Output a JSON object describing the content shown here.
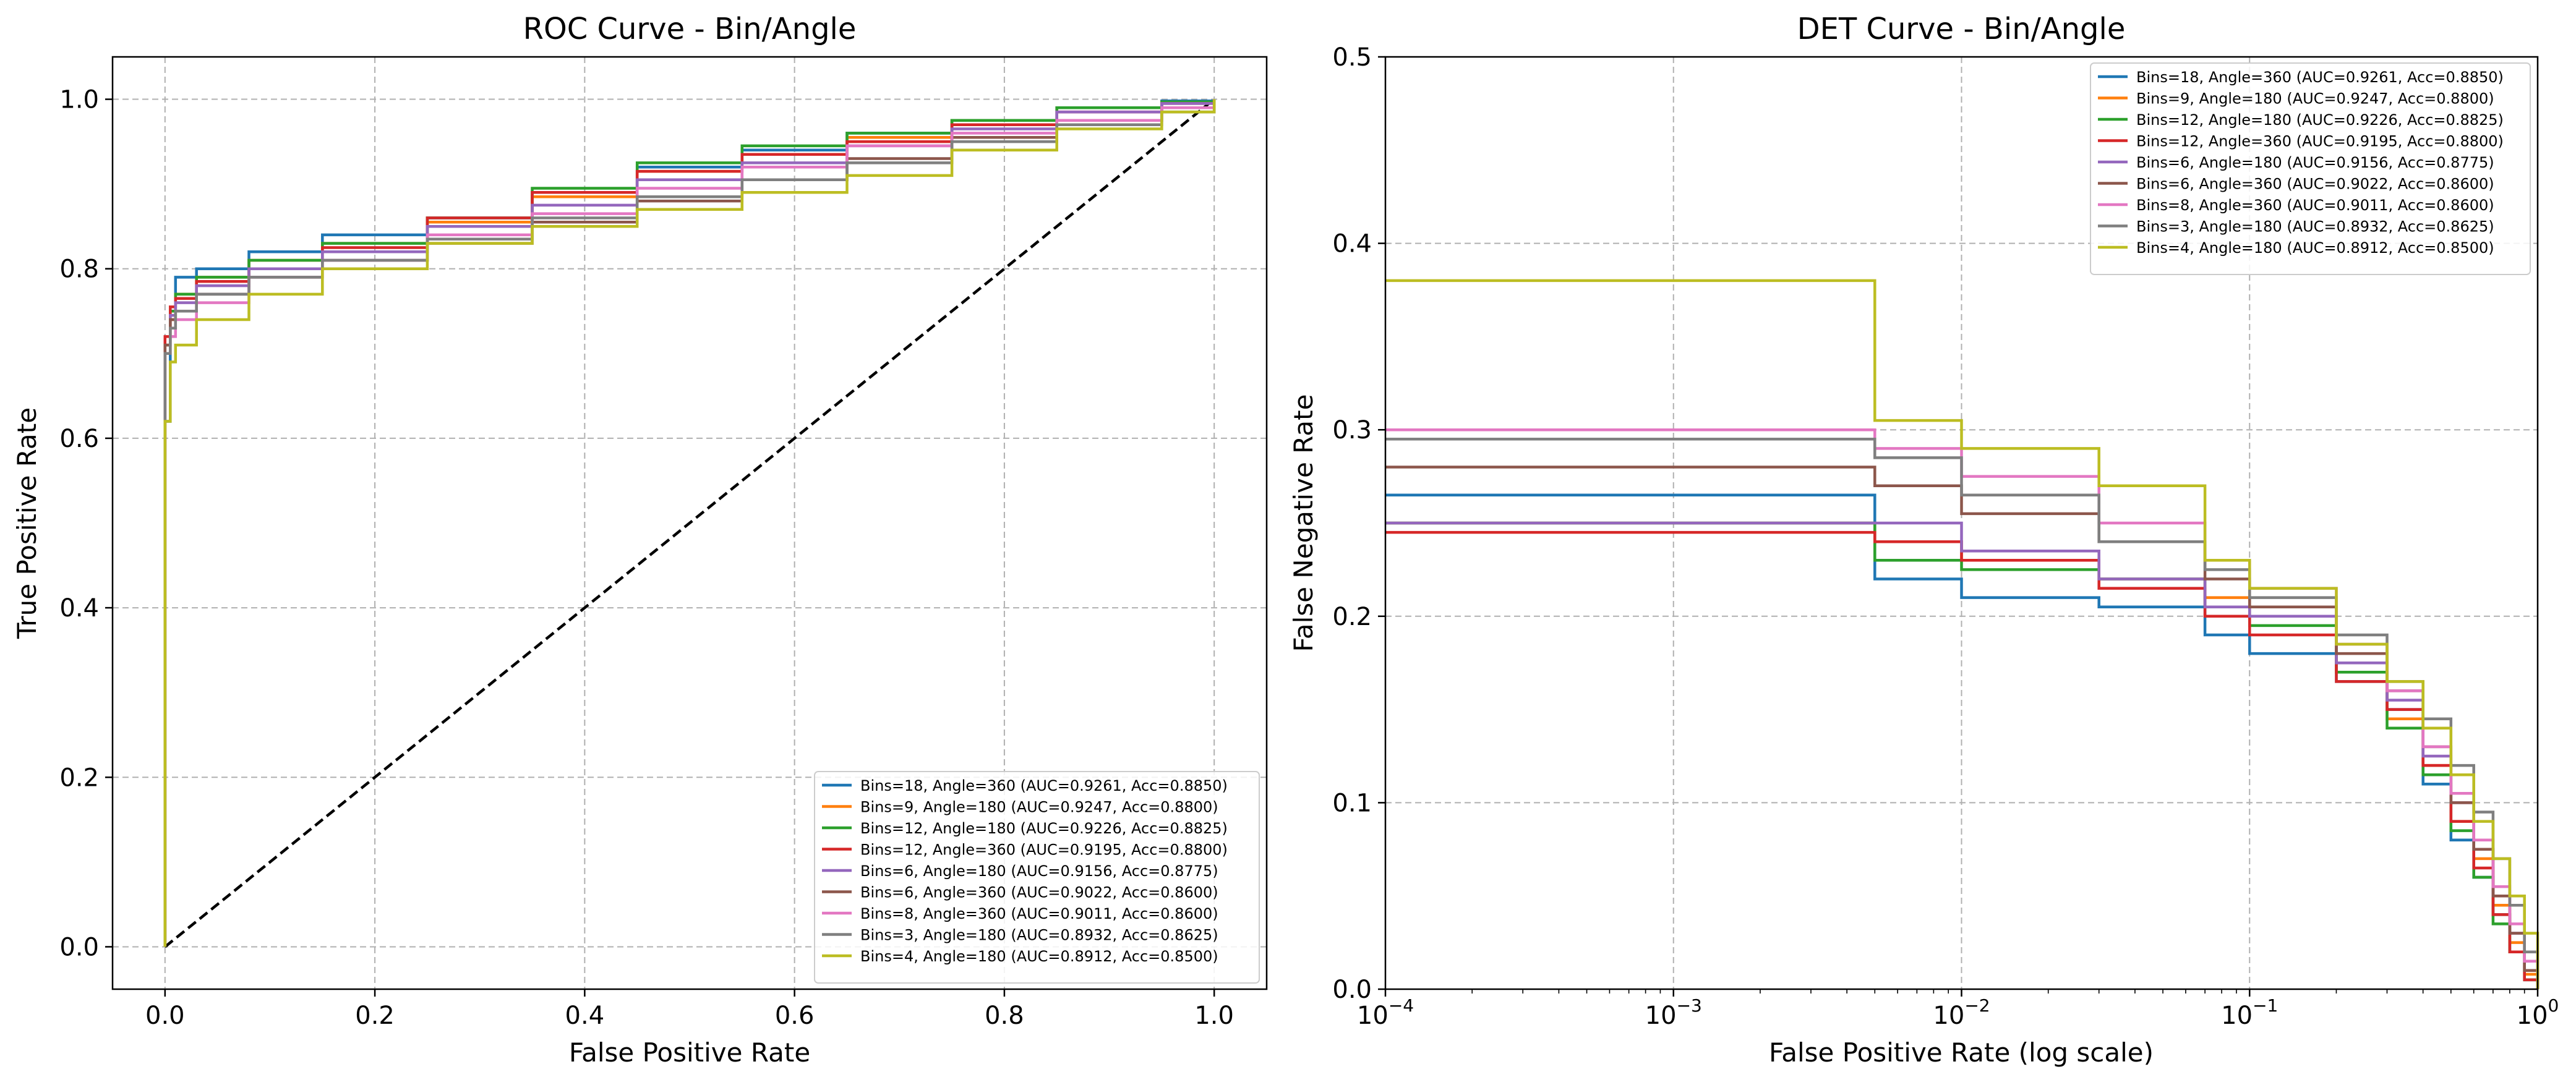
{
  "colors": {
    "tab_blue": "#1f77b4",
    "tab_orange": "#ff7f0e",
    "tab_green": "#2ca02c",
    "tab_red": "#d62728",
    "tab_purple": "#9467bd",
    "tab_brown": "#8c564b",
    "tab_pink": "#e377c2",
    "tab_gray": "#7f7f7f",
    "tab_olive": "#bcbd22",
    "grid": "#b0b0b0",
    "diagonal": "#000000"
  },
  "series_labels": [
    "Bins=18, Angle=360 (AUC=0.9261, Acc=0.8850)",
    "Bins=9, Angle=180 (AUC=0.9247, Acc=0.8800)",
    "Bins=12, Angle=180 (AUC=0.9226, Acc=0.8825)",
    "Bins=12, Angle=360 (AUC=0.9195, Acc=0.8800)",
    "Bins=6, Angle=180 (AUC=0.9156, Acc=0.8775)",
    "Bins=6, Angle=360 (AUC=0.9022, Acc=0.8600)",
    "Bins=8, Angle=360 (AUC=0.9011, Acc=0.8600)",
    "Bins=3, Angle=180 (AUC=0.8932, Acc=0.8625)",
    "Bins=4, Angle=180 (AUC=0.8912, Acc=0.8500)"
  ],
  "chart_data": [
    {
      "type": "line",
      "title": "ROC Curve - Bin/Angle",
      "xlabel": "False Positive Rate",
      "ylabel": "True Positive Rate",
      "xlim": [
        -0.05,
        1.05
      ],
      "ylim": [
        -0.05,
        1.05
      ],
      "xticks": [
        0.0,
        0.2,
        0.4,
        0.6,
        0.8,
        1.0
      ],
      "xtick_labels": [
        "0.0",
        "0.2",
        "0.4",
        "0.6",
        "0.8",
        "1.0"
      ],
      "yticks": [
        0.0,
        0.2,
        0.4,
        0.6,
        0.8,
        1.0
      ],
      "ytick_labels": [
        "0.0",
        "0.2",
        "0.4",
        "0.6",
        "0.8",
        "1.0"
      ],
      "grid": true,
      "legend": "lower-right",
      "diagonal": {
        "x": [
          0,
          1
        ],
        "y": [
          0,
          1
        ],
        "style": "dashed"
      },
      "series": [
        {
          "name": "Bins=18, Angle=360 (AUC=0.9261, Acc=0.8850)",
          "color": "#1f77b4",
          "x": [
            0,
            0,
            0.005,
            0.01,
            0.03,
            0.08,
            0.15,
            0.25,
            0.35,
            0.45,
            0.55,
            0.65,
            0.75,
            0.85,
            0.95,
            1
          ],
          "y": [
            0,
            0.62,
            0.75,
            0.79,
            0.8,
            0.82,
            0.84,
            0.86,
            0.89,
            0.92,
            0.94,
            0.96,
            0.975,
            0.99,
            0.998,
            1
          ]
        },
        {
          "name": "Bins=9, Angle=180 (AUC=0.9247, Acc=0.8800)",
          "color": "#ff7f0e",
          "x": [
            0,
            0,
            0.005,
            0.01,
            0.03,
            0.08,
            0.15,
            0.25,
            0.35,
            0.45,
            0.55,
            0.65,
            0.75,
            0.85,
            0.95,
            1
          ],
          "y": [
            0,
            0.7,
            0.74,
            0.77,
            0.79,
            0.81,
            0.83,
            0.855,
            0.885,
            0.915,
            0.935,
            0.955,
            0.975,
            0.99,
            0.997,
            1
          ]
        },
        {
          "name": "Bins=12, Angle=180 (AUC=0.9226, Acc=0.8825)",
          "color": "#2ca02c",
          "x": [
            0,
            0,
            0.005,
            0.01,
            0.03,
            0.08,
            0.15,
            0.25,
            0.35,
            0.45,
            0.55,
            0.65,
            0.75,
            0.85,
            0.95,
            1
          ],
          "y": [
            0,
            0.71,
            0.75,
            0.77,
            0.79,
            0.81,
            0.83,
            0.86,
            0.895,
            0.925,
            0.945,
            0.96,
            0.975,
            0.99,
            0.997,
            1
          ]
        },
        {
          "name": "Bins=12, Angle=360 (AUC=0.9195, Acc=0.8800)",
          "color": "#d62728",
          "x": [
            0,
            0,
            0.005,
            0.01,
            0.03,
            0.08,
            0.15,
            0.25,
            0.35,
            0.45,
            0.55,
            0.65,
            0.75,
            0.85,
            0.95,
            1
          ],
          "y": [
            0,
            0.72,
            0.755,
            0.765,
            0.785,
            0.8,
            0.825,
            0.86,
            0.89,
            0.915,
            0.935,
            0.95,
            0.97,
            0.985,
            0.995,
            1
          ]
        },
        {
          "name": "Bins=6, Angle=180 (AUC=0.9156, Acc=0.8775)",
          "color": "#9467bd",
          "x": [
            0,
            0,
            0.005,
            0.01,
            0.03,
            0.08,
            0.15,
            0.25,
            0.35,
            0.45,
            0.55,
            0.65,
            0.75,
            0.85,
            0.95,
            1
          ],
          "y": [
            0,
            0.7,
            0.745,
            0.76,
            0.78,
            0.8,
            0.82,
            0.85,
            0.875,
            0.905,
            0.925,
            0.945,
            0.965,
            0.985,
            0.995,
            1
          ]
        },
        {
          "name": "Bins=6, Angle=360 (AUC=0.9022, Acc=0.8600)",
          "color": "#8c564b",
          "x": [
            0,
            0,
            0.005,
            0.01,
            0.03,
            0.08,
            0.15,
            0.25,
            0.35,
            0.45,
            0.55,
            0.65,
            0.75,
            0.85,
            0.95,
            1
          ],
          "y": [
            0,
            0.71,
            0.74,
            0.75,
            0.77,
            0.79,
            0.81,
            0.83,
            0.855,
            0.88,
            0.905,
            0.93,
            0.955,
            0.975,
            0.99,
            1
          ]
        },
        {
          "name": "Bins=8, Angle=360 (AUC=0.9011, Acc=0.8600)",
          "color": "#e377c2",
          "x": [
            0,
            0,
            0.005,
            0.01,
            0.03,
            0.08,
            0.15,
            0.25,
            0.35,
            0.45,
            0.55,
            0.65,
            0.75,
            0.85,
            0.95,
            1
          ],
          "y": [
            0,
            0.7,
            0.72,
            0.74,
            0.76,
            0.79,
            0.81,
            0.84,
            0.865,
            0.895,
            0.92,
            0.945,
            0.96,
            0.975,
            0.99,
            1
          ]
        },
        {
          "name": "Bins=3, Angle=180 (AUC=0.8932, Acc=0.8625)",
          "color": "#7f7f7f",
          "x": [
            0,
            0,
            0.005,
            0.01,
            0.03,
            0.08,
            0.15,
            0.25,
            0.35,
            0.45,
            0.55,
            0.65,
            0.75,
            0.85,
            0.95,
            1
          ],
          "y": [
            0,
            0.7,
            0.73,
            0.75,
            0.77,
            0.79,
            0.81,
            0.835,
            0.86,
            0.885,
            0.905,
            0.925,
            0.95,
            0.97,
            0.985,
            1
          ]
        },
        {
          "name": "Bins=4, Angle=180 (AUC=0.8912, Acc=0.8500)",
          "color": "#bcbd22",
          "x": [
            0,
            0,
            0.005,
            0.01,
            0.03,
            0.08,
            0.15,
            0.25,
            0.35,
            0.45,
            0.55,
            0.65,
            0.75,
            0.85,
            0.95,
            1
          ],
          "y": [
            0,
            0.62,
            0.69,
            0.71,
            0.74,
            0.77,
            0.8,
            0.83,
            0.85,
            0.87,
            0.89,
            0.91,
            0.94,
            0.965,
            0.985,
            1
          ]
        }
      ]
    },
    {
      "type": "line",
      "title": "DET Curve - Bin/Angle",
      "xlabel": "False Positive Rate (log scale)",
      "ylabel": "False Negative Rate",
      "xscale": "log",
      "xlim": [
        0.0001,
        1
      ],
      "ylim": [
        0,
        0.5
      ],
      "xticks": [
        0.0001,
        0.001,
        0.01,
        0.1,
        1
      ],
      "xtick_labels": [
        "10",
        "10",
        "10",
        "10",
        "10"
      ],
      "xtick_exponents": [
        "−4",
        "−3",
        "−2",
        "−1",
        "0"
      ],
      "yticks": [
        0,
        0.1,
        0.2,
        0.3,
        0.4,
        0.5
      ],
      "ytick_labels": [
        "0.0",
        "0.1",
        "0.2",
        "0.3",
        "0.4",
        "0.5"
      ],
      "grid": true,
      "legend": "upper-right",
      "series": [
        {
          "name": "Bins=18, Angle=360 (AUC=0.9261, Acc=0.8850)",
          "color": "#1f77b4",
          "x": [
            0.0001,
            0.005,
            0.01,
            0.03,
            0.07,
            0.1,
            0.2,
            0.3,
            0.4,
            0.5,
            0.6,
            0.7,
            0.8,
            0.9,
            1
          ],
          "y": [
            0.265,
            0.22,
            0.21,
            0.205,
            0.19,
            0.18,
            0.165,
            0.15,
            0.11,
            0.08,
            0.06,
            0.04,
            0.02,
            0.005,
            0
          ]
        },
        {
          "name": "Bins=9, Angle=180 (AUC=0.9247, Acc=0.8800)",
          "color": "#ff7f0e",
          "x": [
            0.0001,
            0.005,
            0.01,
            0.03,
            0.07,
            0.1,
            0.2,
            0.3,
            0.4,
            0.5,
            0.6,
            0.7,
            0.8,
            0.9,
            1
          ],
          "y": [
            0.25,
            0.24,
            0.23,
            0.22,
            0.21,
            0.2,
            0.17,
            0.145,
            0.12,
            0.09,
            0.07,
            0.045,
            0.025,
            0.008,
            0
          ]
        },
        {
          "name": "Bins=12, Angle=180 (AUC=0.9226, Acc=0.8825)",
          "color": "#2ca02c",
          "x": [
            0.0001,
            0.005,
            0.01,
            0.03,
            0.07,
            0.1,
            0.2,
            0.3,
            0.4,
            0.5,
            0.6,
            0.7,
            0.8,
            0.9,
            1
          ],
          "y": [
            0.25,
            0.23,
            0.225,
            0.22,
            0.205,
            0.195,
            0.17,
            0.14,
            0.115,
            0.085,
            0.06,
            0.035,
            0.02,
            0.005,
            0
          ]
        },
        {
          "name": "Bins=12, Angle=360 (AUC=0.9195, Acc=0.8800)",
          "color": "#d62728",
          "x": [
            0.0001,
            0.005,
            0.01,
            0.03,
            0.07,
            0.1,
            0.2,
            0.3,
            0.4,
            0.5,
            0.6,
            0.7,
            0.8,
            0.9,
            1
          ],
          "y": [
            0.245,
            0.24,
            0.23,
            0.215,
            0.2,
            0.19,
            0.165,
            0.15,
            0.12,
            0.09,
            0.065,
            0.04,
            0.02,
            0.005,
            0
          ]
        },
        {
          "name": "Bins=6, Angle=180 (AUC=0.9156, Acc=0.8775)",
          "color": "#9467bd",
          "x": [
            0.0001,
            0.005,
            0.01,
            0.03,
            0.07,
            0.1,
            0.2,
            0.3,
            0.4,
            0.5,
            0.6,
            0.7,
            0.8,
            0.9,
            1
          ],
          "y": [
            0.25,
            0.25,
            0.235,
            0.22,
            0.205,
            0.2,
            0.175,
            0.155,
            0.125,
            0.1,
            0.075,
            0.05,
            0.03,
            0.01,
            0
          ]
        },
        {
          "name": "Bins=6, Angle=360 (AUC=0.9022, Acc=0.8600)",
          "color": "#8c564b",
          "x": [
            0.0001,
            0.005,
            0.01,
            0.03,
            0.07,
            0.1,
            0.2,
            0.3,
            0.4,
            0.5,
            0.6,
            0.7,
            0.8,
            0.9,
            1
          ],
          "y": [
            0.28,
            0.27,
            0.255,
            0.24,
            0.22,
            0.205,
            0.18,
            0.16,
            0.13,
            0.1,
            0.075,
            0.05,
            0.03,
            0.01,
            0
          ]
        },
        {
          "name": "Bins=8, Angle=360 (AUC=0.9011, Acc=0.8600)",
          "color": "#e377c2",
          "x": [
            0.0001,
            0.005,
            0.01,
            0.03,
            0.07,
            0.1,
            0.2,
            0.3,
            0.4,
            0.5,
            0.6,
            0.7,
            0.8,
            0.9,
            1
          ],
          "y": [
            0.3,
            0.29,
            0.275,
            0.25,
            0.23,
            0.215,
            0.185,
            0.16,
            0.13,
            0.105,
            0.08,
            0.055,
            0.035,
            0.015,
            0
          ]
        },
        {
          "name": "Bins=3, Angle=180 (AUC=0.8932, Acc=0.8625)",
          "color": "#7f7f7f",
          "x": [
            0.0001,
            0.005,
            0.01,
            0.03,
            0.07,
            0.1,
            0.2,
            0.3,
            0.4,
            0.5,
            0.6,
            0.7,
            0.8,
            0.9,
            1
          ],
          "y": [
            0.295,
            0.285,
            0.265,
            0.24,
            0.225,
            0.21,
            0.19,
            0.165,
            0.145,
            0.12,
            0.095,
            0.07,
            0.045,
            0.02,
            0
          ]
        },
        {
          "name": "Bins=4, Angle=180 (AUC=0.8912, Acc=0.8500)",
          "color": "#bcbd22",
          "x": [
            0.0001,
            0.005,
            0.01,
            0.03,
            0.07,
            0.1,
            0.2,
            0.3,
            0.4,
            0.5,
            0.6,
            0.7,
            0.8,
            0.9,
            1
          ],
          "y": [
            0.38,
            0.305,
            0.29,
            0.27,
            0.23,
            0.215,
            0.185,
            0.165,
            0.14,
            0.115,
            0.09,
            0.07,
            0.05,
            0.03,
            0
          ]
        }
      ]
    }
  ]
}
